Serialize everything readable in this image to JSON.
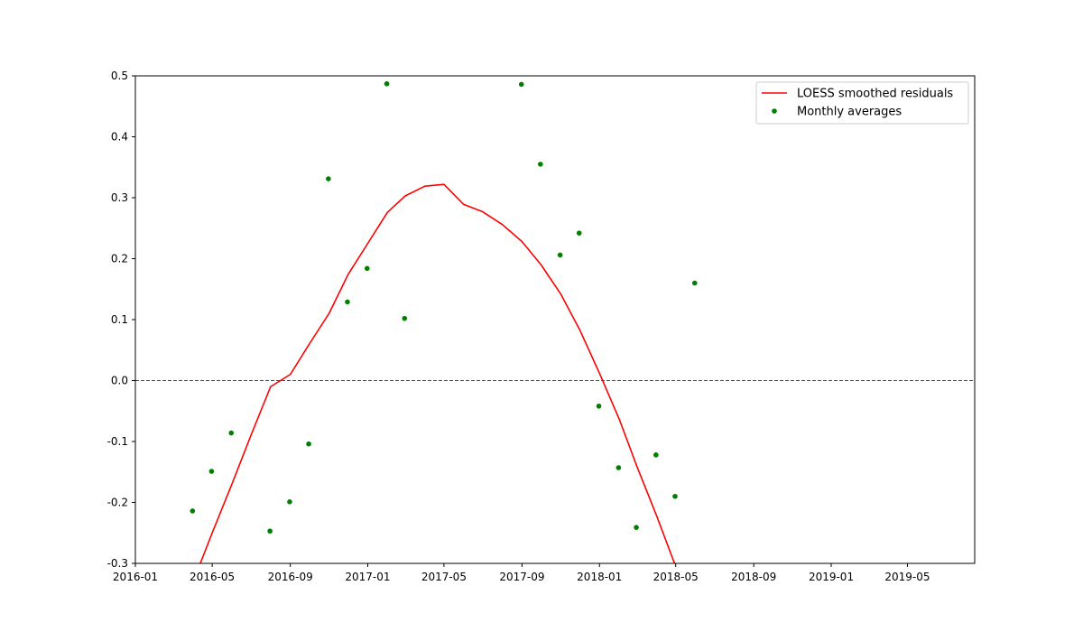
{
  "chart_data": {
    "type": "line",
    "title": "",
    "xlabel": "",
    "ylabel": "",
    "xlim": [
      "2016-01-01",
      "2019-08-15"
    ],
    "ylim": [
      -0.3,
      0.5
    ],
    "x_ticks": [
      "2016-01",
      "2016-05",
      "2016-09",
      "2017-01",
      "2017-05",
      "2017-09",
      "2018-01",
      "2018-05",
      "2018-09",
      "2019-01",
      "2019-05"
    ],
    "y_ticks": [
      "-0.3",
      "-0.2",
      "-0.1",
      "0.0",
      "0.1",
      "0.2",
      "0.3",
      "0.4",
      "0.5"
    ],
    "y_tick_values": [
      -0.3,
      -0.2,
      -0.1,
      0.0,
      0.1,
      0.2,
      0.3,
      0.4,
      0.5
    ],
    "grid": false,
    "legend_position": "top-right",
    "reference_line": {
      "y": 0.0,
      "color": "#ff0000",
      "style": "dashed"
    },
    "series": [
      {
        "name": "LOESS smoothed residuals",
        "kind": "line",
        "color": "#ff0000",
        "points": [
          [
            "2016-03-01",
            -0.41
          ],
          [
            "2016-04-01",
            -0.33
          ],
          [
            "2016-05-01",
            -0.25
          ],
          [
            "2016-06-01",
            -0.17
          ],
          [
            "2016-07-01",
            -0.09
          ],
          [
            "2016-08-01",
            -0.01
          ],
          [
            "2016-09-01",
            0.01
          ],
          [
            "2016-10-01",
            0.06
          ],
          [
            "2016-11-01",
            0.11
          ],
          [
            "2016-12-01",
            0.174
          ],
          [
            "2017-01-01",
            0.225
          ],
          [
            "2017-02-01",
            0.276
          ],
          [
            "2017-03-01",
            0.303
          ],
          [
            "2017-04-01",
            0.319
          ],
          [
            "2017-05-01",
            0.322
          ],
          [
            "2017-06-01",
            0.289
          ],
          [
            "2017-07-01",
            0.277
          ],
          [
            "2017-08-01",
            0.256
          ],
          [
            "2017-09-01",
            0.228
          ],
          [
            "2017-10-01",
            0.19
          ],
          [
            "2017-11-01",
            0.142
          ],
          [
            "2017-12-01",
            0.083
          ],
          [
            "2018-01-01",
            0.012
          ],
          [
            "2018-02-01",
            -0.063
          ],
          [
            "2018-03-01",
            -0.141
          ],
          [
            "2018-04-01",
            -0.222
          ],
          [
            "2018-05-01",
            -0.305
          ],
          [
            "2018-06-01",
            -0.385
          ]
        ]
      },
      {
        "name": "Monthly averages",
        "kind": "scatter",
        "color": "#008000",
        "points": [
          [
            "2016-03-31",
            -0.214
          ],
          [
            "2016-04-30",
            -0.149
          ],
          [
            "2016-05-31",
            -0.086
          ],
          [
            "2016-07-31",
            -0.247
          ],
          [
            "2016-08-31",
            -0.199
          ],
          [
            "2016-09-30",
            -0.104
          ],
          [
            "2016-10-31",
            0.331
          ],
          [
            "2016-11-30",
            0.129
          ],
          [
            "2016-12-31",
            0.184
          ],
          [
            "2017-01-31",
            0.487
          ],
          [
            "2017-02-28",
            0.102
          ],
          [
            "2017-08-31",
            0.486
          ],
          [
            "2017-09-30",
            0.355
          ],
          [
            "2017-10-31",
            0.206
          ],
          [
            "2017-11-30",
            0.242
          ],
          [
            "2017-12-31",
            -0.042
          ],
          [
            "2018-01-31",
            -0.143
          ],
          [
            "2018-02-28",
            -0.241
          ],
          [
            "2018-03-31",
            -0.122
          ],
          [
            "2018-04-30",
            -0.19
          ],
          [
            "2018-05-31",
            0.16
          ]
        ]
      }
    ]
  }
}
